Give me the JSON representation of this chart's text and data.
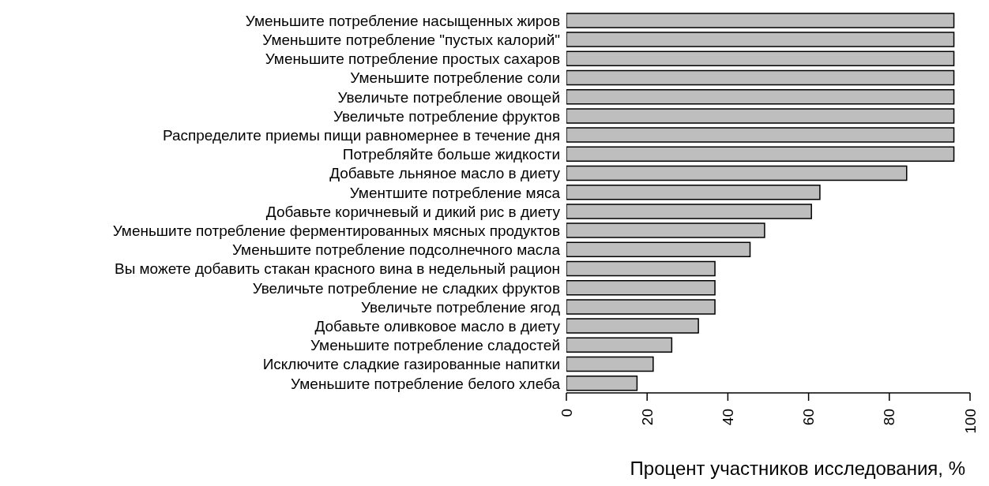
{
  "chart_data": {
    "type": "bar",
    "orientation": "horizontal",
    "xlabel": "Процент участников исследования, %",
    "categories": [
      "Уменьшите потребление насыщенных жиров",
      "Уменьшите потребление \"пустых калорий\"",
      "Уменьшите потребление простых сахаров",
      "Уменьшите потребление соли",
      "Увеличьте потребление овощей",
      "Увеличьте потребление фруктов",
      "Распределите приемы пищи равномернее в течение дня",
      "Потребляйте больше жидкости",
      "Добавьте льняное масло в диету",
      "Ументшите потребление мяса",
      "Добавьте коричневый и дикий рис в диету",
      "Уменьшите потребление ферментированных мясных продуктов",
      "Уменьшите потребление подсолнечного масла",
      "Вы можете добавить стакан красного вина в недельный рацион",
      "Увеличьте потребление не сладких фруктов",
      "Увеличьте потребление ягод",
      "Добавьте оливковое масло в диету",
      "Уменьшите потребление сладостей",
      "Исключите сладкие газированные напитки",
      "Уменьшите потребление белого хлеба"
    ],
    "values": [
      96,
      96,
      96,
      96,
      96,
      96,
      96,
      96,
      84.3,
      62.8,
      60.7,
      49.1,
      45.5,
      36.8,
      36.8,
      36.8,
      32.7,
      26.1,
      21.5,
      17.5
    ],
    "color": "#bebebe",
    "xlim": [
      0,
      100
    ],
    "xticks": [
      0,
      20,
      40,
      60,
      80,
      100
    ],
    "grid": false,
    "legend": false
  }
}
